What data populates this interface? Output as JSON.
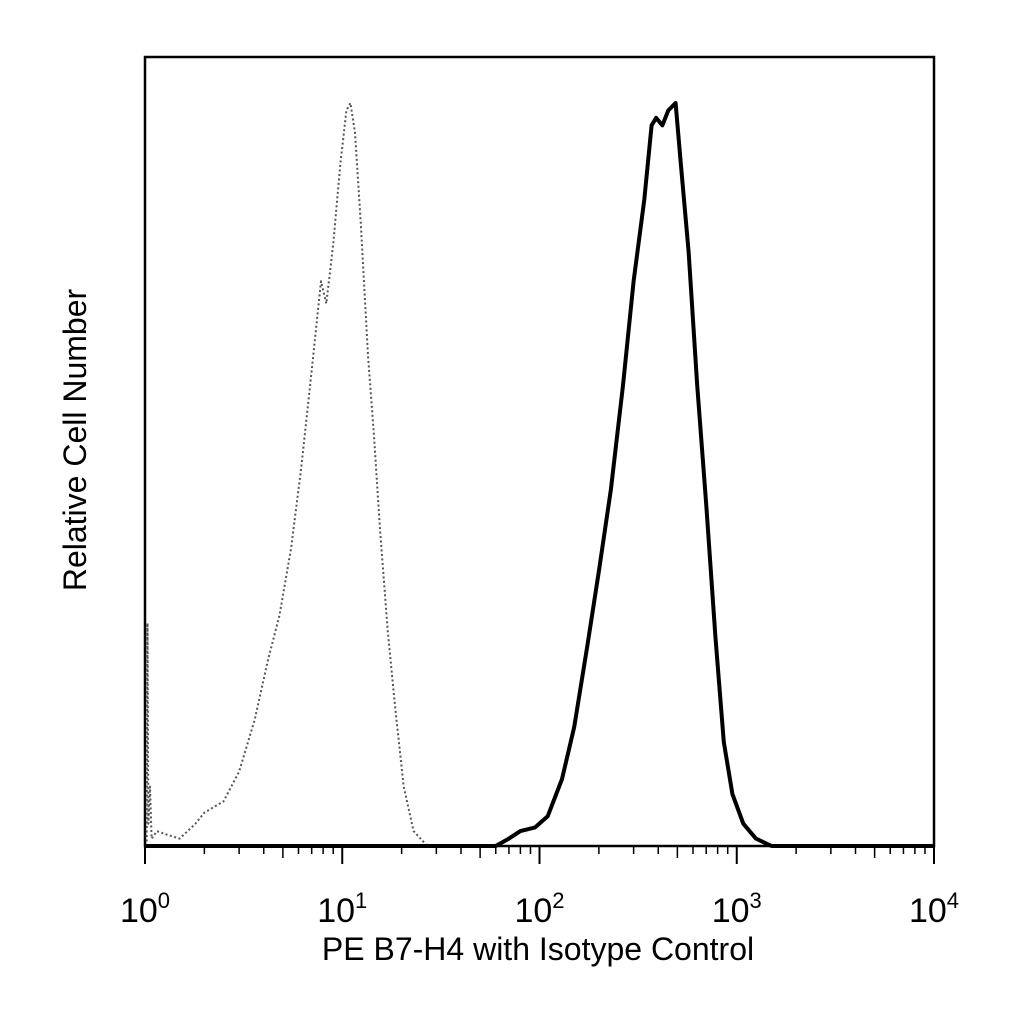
{
  "chart_data": {
    "type": "histogram",
    "title": "",
    "xlabel": "PE  B7-H4 with Isotype Control",
    "ylabel": "Relative Cell Number",
    "x_scale": "log",
    "xlim": [
      1,
      10000
    ],
    "ylim": [
      0,
      1
    ],
    "grid": false,
    "legend": "none",
    "x_ticks": [
      {
        "base": "10",
        "exp": "0",
        "value": 1
      },
      {
        "base": "10",
        "exp": "1",
        "value": 10
      },
      {
        "base": "10",
        "exp": "2",
        "value": 100
      },
      {
        "base": "10",
        "exp": "3",
        "value": 1000
      },
      {
        "base": "10",
        "exp": "4",
        "value": 10000
      }
    ],
    "series": [
      {
        "style": "dotted",
        "color": "#555555",
        "points": [
          [
            1.02,
            0.0
          ],
          [
            1.03,
            0.3
          ],
          [
            1.04,
            0.03
          ],
          [
            1.06,
            0.08
          ],
          [
            1.08,
            0.01
          ],
          [
            1.15,
            0.02
          ],
          [
            1.3,
            0.015
          ],
          [
            1.5,
            0.01
          ],
          [
            1.8,
            0.03
          ],
          [
            2.0,
            0.045
          ],
          [
            2.5,
            0.06
          ],
          [
            3.0,
            0.1
          ],
          [
            3.6,
            0.17
          ],
          [
            4.2,
            0.25
          ],
          [
            4.8,
            0.31
          ],
          [
            5.5,
            0.4
          ],
          [
            6.2,
            0.51
          ],
          [
            7.0,
            0.64
          ],
          [
            7.8,
            0.76
          ],
          [
            8.3,
            0.73
          ],
          [
            9.0,
            0.81
          ],
          [
            9.8,
            0.92
          ],
          [
            10.5,
            0.99
          ],
          [
            11.0,
            1.0
          ],
          [
            11.6,
            0.96
          ],
          [
            12.4,
            0.84
          ],
          [
            13.5,
            0.66
          ],
          [
            14.5,
            0.55
          ],
          [
            15.5,
            0.43
          ],
          [
            17.0,
            0.29
          ],
          [
            18.5,
            0.19
          ],
          [
            20.5,
            0.08
          ],
          [
            23.0,
            0.02
          ],
          [
            27.0,
            0.0
          ],
          [
            35.0,
            0.0
          ]
        ]
      },
      {
        "style": "solid",
        "color": "#000000",
        "points": [
          [
            1.0,
            0.0
          ],
          [
            60.0,
            0.0
          ],
          [
            70.0,
            0.01
          ],
          [
            80.0,
            0.02
          ],
          [
            95.0,
            0.025
          ],
          [
            110.0,
            0.04
          ],
          [
            130.0,
            0.09
          ],
          [
            150.0,
            0.16
          ],
          [
            175.0,
            0.27
          ],
          [
            200.0,
            0.37
          ],
          [
            230.0,
            0.48
          ],
          [
            265.0,
            0.62
          ],
          [
            300.0,
            0.76
          ],
          [
            340.0,
            0.87
          ],
          [
            370.0,
            0.97
          ],
          [
            390.0,
            0.98
          ],
          [
            420.0,
            0.97
          ],
          [
            450.0,
            0.99
          ],
          [
            490.0,
            1.0
          ],
          [
            520.0,
            0.92
          ],
          [
            570.0,
            0.8
          ],
          [
            630.0,
            0.62
          ],
          [
            700.0,
            0.46
          ],
          [
            780.0,
            0.28
          ],
          [
            860.0,
            0.14
          ],
          [
            950.0,
            0.07
          ],
          [
            1080.0,
            0.03
          ],
          [
            1250.0,
            0.01
          ],
          [
            1500.0,
            0.0
          ],
          [
            10000.0,
            0.0
          ]
        ]
      }
    ]
  }
}
